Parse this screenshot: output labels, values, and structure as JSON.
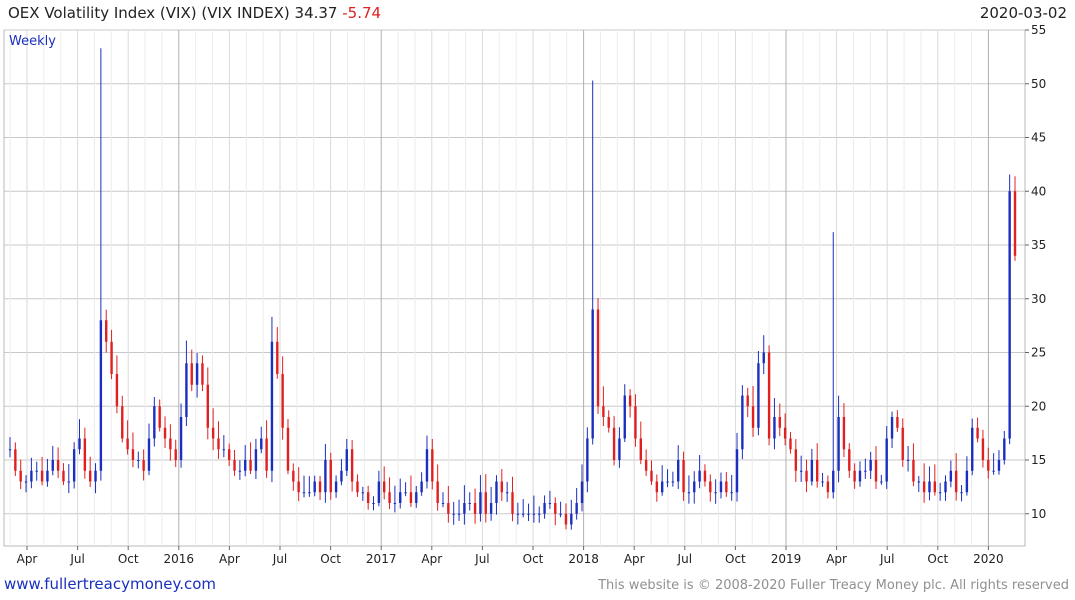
{
  "header": {
    "title": "OEX Volatility Index (VIX) (VIX INDEX)",
    "last": "34.37",
    "change": "-5.74",
    "date": "2020-03-02"
  },
  "footer": {
    "link": "www.fullertreacymoney.com",
    "copyright": "This website is © 2008-2020 Fuller Treacy Money plc. All rights reserved"
  },
  "chart_data": {
    "type": "ohlc",
    "period_label": "Weekly",
    "ylim": [
      7,
      55
    ],
    "y_ticks": [
      10,
      15,
      20,
      25,
      30,
      35,
      40,
      45,
      50,
      55
    ],
    "x_ticks": [
      "Apr",
      "Jul",
      "Oct",
      "2016",
      "Apr",
      "Jul",
      "Oct",
      "2017",
      "Apr",
      "Jul",
      "Oct",
      "2018",
      "Apr",
      "Jul",
      "Oct",
      "2019",
      "Apr",
      "Jul",
      "Oct",
      "2020"
    ],
    "up_color": "#1a2fc0",
    "down_color": "#e02020",
    "grid": true,
    "approx_weekly_close": [
      16,
      14,
      13,
      13,
      14,
      14,
      13,
      14,
      15,
      14,
      13,
      13,
      16,
      17,
      14,
      13,
      14,
      28,
      26,
      23,
      20,
      17,
      16,
      15,
      15,
      14,
      17,
      20,
      18,
      17,
      16,
      15,
      19,
      24,
      22,
      24,
      22,
      18,
      17,
      16,
      16,
      15,
      14,
      14,
      15,
      14,
      16,
      17,
      14,
      26,
      23,
      18,
      14,
      13,
      12,
      12,
      12,
      13,
      12,
      15,
      12,
      13,
      14,
      16,
      13,
      12,
      12,
      11,
      11,
      13,
      12,
      11,
      11,
      12,
      12,
      11,
      12,
      13,
      16,
      13,
      11,
      11,
      10,
      10,
      10,
      11,
      11,
      10,
      12,
      10,
      11,
      13,
      12,
      12,
      10,
      10,
      10,
      10,
      10,
      10,
      11,
      11,
      10,
      10,
      9,
      10,
      11,
      13,
      17,
      29,
      20,
      19,
      18,
      15,
      17,
      21,
      20,
      17,
      15,
      14,
      13,
      12,
      13,
      13,
      13,
      15,
      12,
      12,
      13,
      14,
      13,
      12,
      12,
      13,
      12,
      12,
      16,
      21,
      20,
      18,
      24,
      25,
      17,
      19,
      18,
      17,
      16,
      14,
      14,
      13,
      15,
      13,
      13,
      12,
      14,
      19,
      16,
      14,
      13,
      14,
      14,
      15,
      13,
      13,
      17,
      19,
      18,
      15,
      15,
      13,
      13,
      12,
      13,
      12,
      12,
      13,
      14,
      12,
      12,
      14,
      18,
      17,
      15,
      14,
      14,
      15,
      17,
      40,
      34
    ]
  }
}
